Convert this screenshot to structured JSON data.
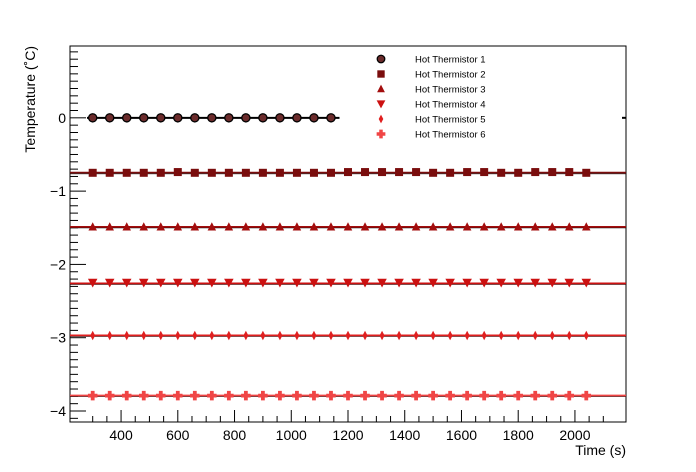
{
  "chart_data": {
    "type": "scatter",
    "xlabel": "Time (s)",
    "ylabel": "Temperature (˚C)",
    "xlim": [
      220,
      2180
    ],
    "ylim": [
      -4.15,
      0.98
    ],
    "xticks": [
      400,
      600,
      800,
      1000,
      1200,
      1400,
      1600,
      1800,
      2000
    ],
    "xtick_labels": [
      "400",
      "600",
      "800",
      "1000",
      "1200",
      "1400",
      "1600",
      "1800",
      "2000"
    ],
    "yticks": [
      0,
      -1,
      -2,
      -3,
      -4
    ],
    "ytick_labels": [
      "0",
      "−1",
      "−2",
      "−3",
      "−4"
    ],
    "grid": false,
    "legend_position": "top-center",
    "series": [
      {
        "name": "Hot Thermistor 1",
        "marker": "circle",
        "color": "#000000",
        "fill": "#6b2b2b",
        "x": [
          300,
          360,
          420,
          480,
          540,
          600,
          660,
          720,
          780,
          840,
          900,
          960,
          1020,
          1080,
          1140
        ],
        "y": [
          0,
          0,
          0,
          0,
          0,
          0,
          0,
          0,
          0,
          0,
          0,
          0,
          0,
          0,
          0
        ],
        "fit_level": 0,
        "fit_range": [
          280,
          1170
        ]
      },
      {
        "name": "Hot Thermistor 2",
        "marker": "square",
        "color": "#7a0d0d",
        "x": [
          300,
          360,
          420,
          480,
          540,
          600,
          660,
          720,
          780,
          840,
          900,
          960,
          1020,
          1080,
          1140,
          1200,
          1260,
          1320,
          1380,
          1440,
          1500,
          1560,
          1620,
          1680,
          1740,
          1800,
          1860,
          1920,
          1980,
          2040
        ],
        "y": [
          -0.75,
          -0.75,
          -0.75,
          -0.75,
          -0.75,
          -0.74,
          -0.75,
          -0.75,
          -0.75,
          -0.75,
          -0.75,
          -0.75,
          -0.75,
          -0.75,
          -0.75,
          -0.74,
          -0.74,
          -0.74,
          -0.74,
          -0.74,
          -0.75,
          -0.75,
          -0.74,
          -0.74,
          -0.75,
          -0.75,
          -0.74,
          -0.74,
          -0.74,
          -0.75
        ],
        "fit_level": -0.75,
        "fit_range": [
          220,
          2180
        ]
      },
      {
        "name": "Hot Thermistor 3",
        "marker": "triangle-up",
        "color": "#a30d0d",
        "x": [
          300,
          360,
          420,
          480,
          540,
          600,
          660,
          720,
          780,
          840,
          900,
          960,
          1020,
          1080,
          1140,
          1200,
          1260,
          1320,
          1380,
          1440,
          1500,
          1560,
          1620,
          1680,
          1740,
          1800,
          1860,
          1920,
          1980,
          2040
        ],
        "y": [
          -1.49,
          -1.49,
          -1.49,
          -1.49,
          -1.49,
          -1.49,
          -1.49,
          -1.49,
          -1.49,
          -1.49,
          -1.49,
          -1.49,
          -1.49,
          -1.49,
          -1.49,
          -1.49,
          -1.49,
          -1.49,
          -1.49,
          -1.49,
          -1.49,
          -1.49,
          -1.49,
          -1.49,
          -1.49,
          -1.49,
          -1.49,
          -1.49,
          -1.49,
          -1.49
        ],
        "fit_level": -1.49,
        "fit_range": [
          220,
          2180
        ]
      },
      {
        "name": "Hot Thermistor 4",
        "marker": "triangle-down",
        "color": "#cc1111",
        "x": [
          300,
          360,
          420,
          480,
          540,
          600,
          660,
          720,
          780,
          840,
          900,
          960,
          1020,
          1080,
          1140,
          1200,
          1260,
          1320,
          1380,
          1440,
          1500,
          1560,
          1620,
          1680,
          1740,
          1800,
          1860,
          1920,
          1980,
          2040
        ],
        "y": [
          -2.25,
          -2.25,
          -2.25,
          -2.25,
          -2.25,
          -2.25,
          -2.25,
          -2.25,
          -2.25,
          -2.25,
          -2.25,
          -2.25,
          -2.25,
          -2.25,
          -2.25,
          -2.25,
          -2.25,
          -2.25,
          -2.25,
          -2.25,
          -2.25,
          -2.25,
          -2.25,
          -2.25,
          -2.25,
          -2.25,
          -2.25,
          -2.25,
          -2.25,
          -2.25
        ],
        "fit_level": -2.26,
        "fit_range": [
          220,
          2180
        ]
      },
      {
        "name": "Hot Thermistor 5",
        "marker": "diamond",
        "color": "#e01f1f",
        "x": [
          300,
          360,
          420,
          480,
          540,
          600,
          660,
          720,
          780,
          840,
          900,
          960,
          1020,
          1080,
          1140,
          1200,
          1260,
          1320,
          1380,
          1440,
          1500,
          1560,
          1620,
          1680,
          1740,
          1800,
          1860,
          1920,
          1980,
          2040
        ],
        "y": [
          -2.97,
          -2.97,
          -2.97,
          -2.97,
          -2.97,
          -2.97,
          -2.97,
          -2.97,
          -2.97,
          -2.97,
          -2.97,
          -2.97,
          -2.97,
          -2.97,
          -2.97,
          -2.97,
          -2.97,
          -2.97,
          -2.97,
          -2.97,
          -2.97,
          -2.97,
          -2.97,
          -2.97,
          -2.97,
          -2.97,
          -2.97,
          -2.97,
          -2.97,
          -2.97
        ],
        "fit_level": -2.97,
        "fit_range": [
          220,
          2180
        ]
      },
      {
        "name": "Hot Thermistor 6",
        "marker": "cross",
        "color": "#f04545",
        "x": [
          300,
          360,
          420,
          480,
          540,
          600,
          660,
          720,
          780,
          840,
          900,
          960,
          1020,
          1080,
          1140,
          1200,
          1260,
          1320,
          1380,
          1440,
          1500,
          1560,
          1620,
          1680,
          1740,
          1800,
          1860,
          1920,
          1980,
          2040
        ],
        "y": [
          -3.79,
          -3.79,
          -3.79,
          -3.79,
          -3.79,
          -3.79,
          -3.79,
          -3.79,
          -3.79,
          -3.79,
          -3.79,
          -3.79,
          -3.79,
          -3.79,
          -3.79,
          -3.79,
          -3.79,
          -3.79,
          -3.79,
          -3.79,
          -3.79,
          -3.79,
          -3.79,
          -3.79,
          -3.79,
          -3.79,
          -3.79,
          -3.79,
          -3.79,
          -3.79
        ],
        "fit_level": -3.79,
        "fit_range": [
          220,
          2180
        ]
      }
    ]
  }
}
